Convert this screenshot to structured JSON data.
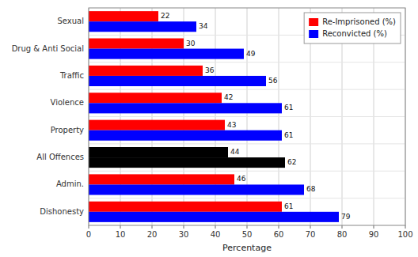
{
  "chart_data": {
    "type": "bar",
    "orientation": "horizontal",
    "categories": [
      "Dishonesty",
      "Admin.",
      "All Offences",
      "Property",
      "Violence",
      "Traffic",
      "Drug & Anti Social",
      "Sexual"
    ],
    "series": [
      {
        "name": "Re-Imprisoned (%)",
        "color": "#FF0000",
        "colors": [
          "#FF0000",
          "#FF0000",
          "#000000",
          "#FF0000",
          "#FF0000",
          "#FF0000",
          "#FF0000",
          "#FF0000"
        ],
        "values": [
          61,
          46,
          44,
          43,
          42,
          36,
          30,
          22
        ]
      },
      {
        "name": "Reconvicted (%)",
        "color": "#0000FF",
        "colors": [
          "#0000FF",
          "#0000FF",
          "#000000",
          "#0000FF",
          "#0000FF",
          "#0000FF",
          "#0000FF",
          "#0000FF"
        ],
        "values": [
          79,
          68,
          62,
          61,
          61,
          56,
          49,
          34
        ]
      }
    ],
    "x_label": "Percentage",
    "xlim": [
      0,
      100
    ],
    "xticks": [
      0,
      10,
      20,
      30,
      40,
      50,
      60,
      70,
      80,
      90,
      100
    ],
    "grid": true,
    "data_labels": true,
    "legend": "upper right"
  }
}
